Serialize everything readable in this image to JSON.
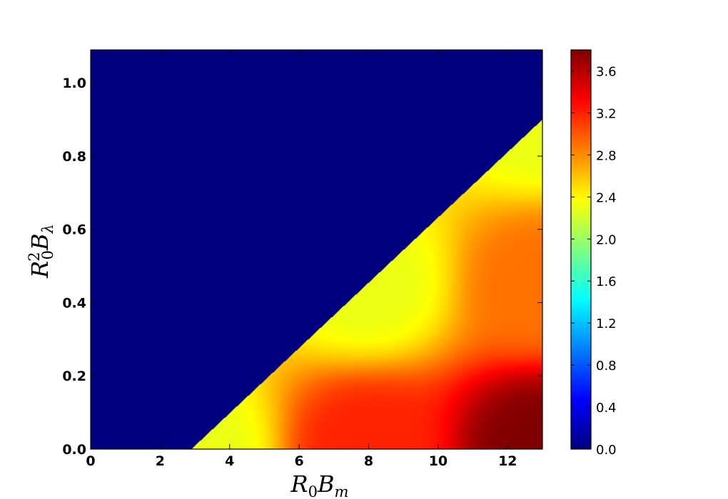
{
  "chart_data": {
    "type": "heatmap",
    "title": "",
    "xlabel": "R₀B_m",
    "ylabel": "R₀²B_λ",
    "xlabel_parts": {
      "base1": "R",
      "sub1": "0",
      "base2": "B",
      "sub2": "m"
    },
    "ylabel_parts": {
      "base1": "R",
      "sub1": "0",
      "sup1": "2",
      "base2": "B",
      "sub2": "λ"
    },
    "xlim": [
      0,
      13
    ],
    "ylim": [
      0,
      1.09
    ],
    "xticks": [
      0,
      2,
      4,
      6,
      8,
      10,
      12
    ],
    "xtick_labels": [
      "0",
      "2",
      "4",
      "6",
      "8",
      "10",
      "12"
    ],
    "yticks": [
      0.0,
      0.2,
      0.4,
      0.6,
      0.8,
      1.0
    ],
    "ytick_labels": [
      "0.0",
      "0.2",
      "0.4",
      "0.6",
      "0.8",
      "1.0"
    ],
    "boundary": {
      "description_points": [
        [
          2.9,
          0.0
        ],
        [
          13.0,
          0.9
        ]
      ]
    },
    "value_at_points": [
      {
        "x": 3.0,
        "y": 0.0,
        "value": 2.3
      },
      {
        "x": 8.0,
        "y": 0.0,
        "value": 3.2
      },
      {
        "x": 13.0,
        "y": 0.0,
        "value": 3.8
      },
      {
        "x": 13.0,
        "y": 0.45,
        "value": 2.9
      },
      {
        "x": 13.0,
        "y": 0.9,
        "value": 2.3
      },
      {
        "x": 8.0,
        "y": 0.45,
        "value": 2.3
      }
    ],
    "value_outside_region": 0.0,
    "colormap": "jet",
    "colorbar": {
      "vmin": 0.0,
      "vmax": 3.8,
      "ticks": [
        0.0,
        0.4,
        0.8,
        1.2,
        1.6,
        2.0,
        2.4,
        2.8,
        3.2,
        3.6
      ],
      "tick_labels": [
        "0.0",
        "0.4",
        "0.8",
        "1.2",
        "1.6",
        "2.0",
        "2.4",
        "2.8",
        "3.2",
        "3.6"
      ]
    },
    "grid": false,
    "legend": "none"
  },
  "colors": {
    "jet": [
      "#00007f",
      "#0000ff",
      "#007fff",
      "#00ffff",
      "#7fff7f",
      "#ffff00",
      "#ff7f00",
      "#ff0000",
      "#7f0000"
    ]
  }
}
